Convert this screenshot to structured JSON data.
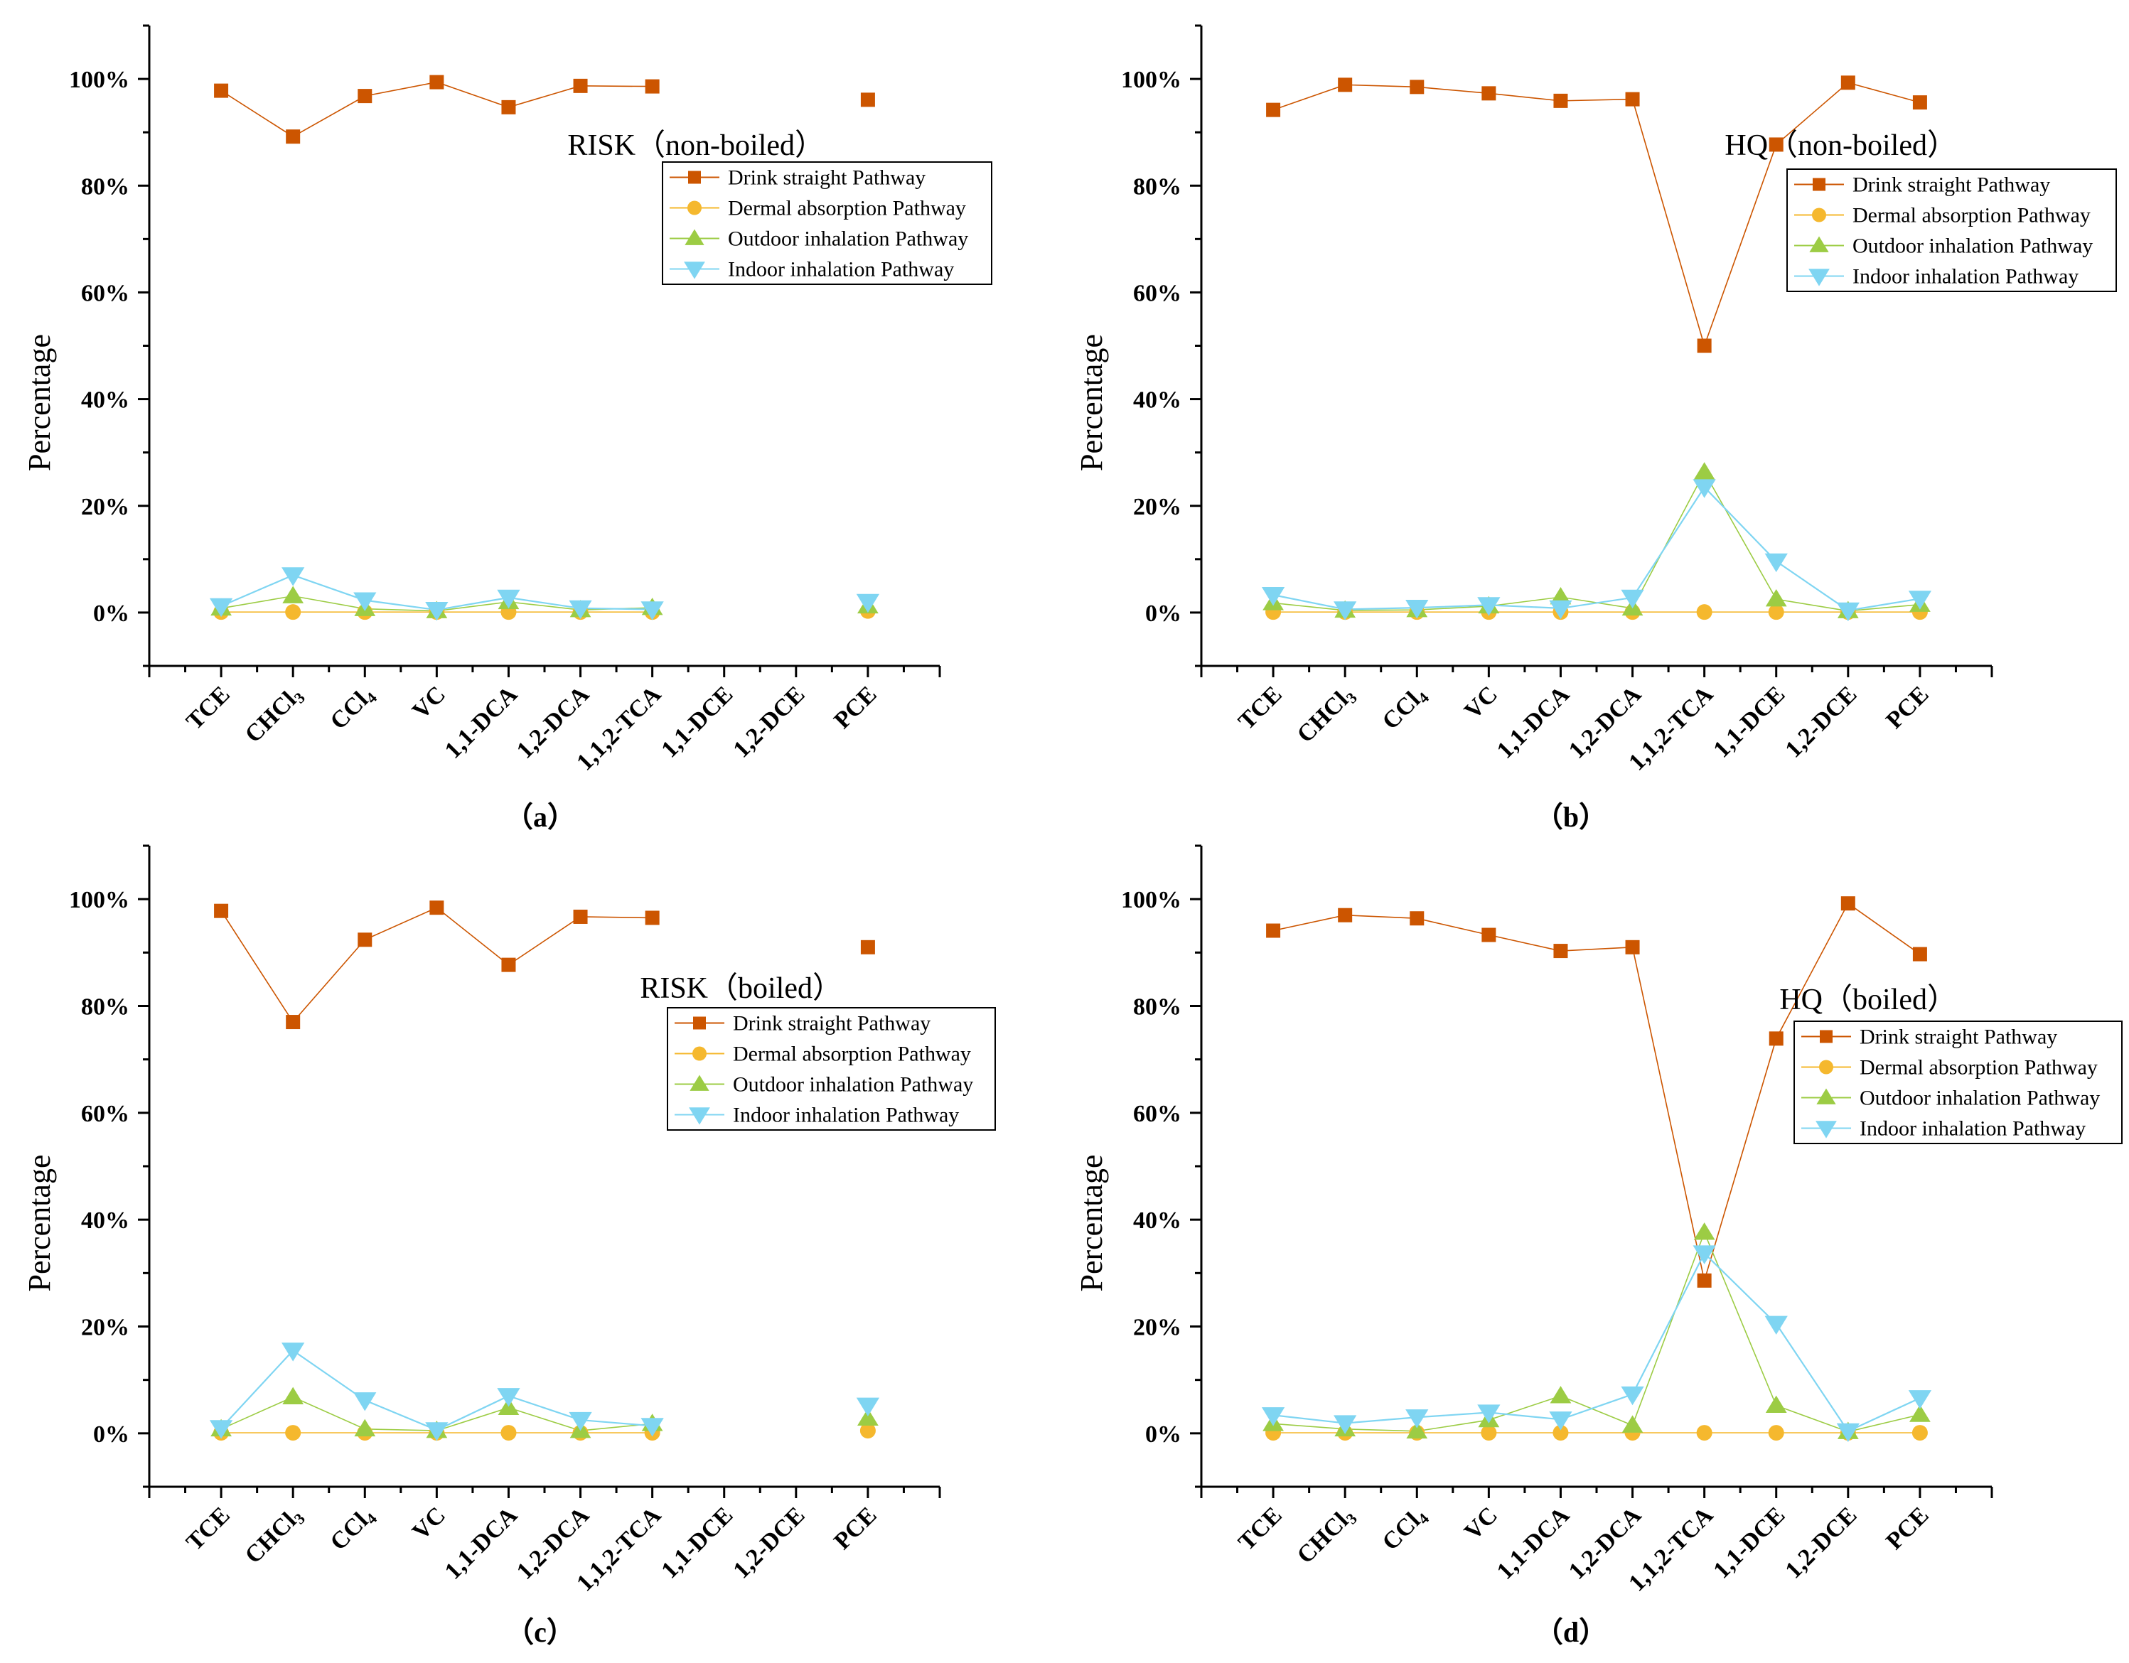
{
  "chart_data": [
    {
      "type": "line",
      "panel_label": "（a）",
      "title": "RISK（non-boiled）",
      "xlabel": "",
      "ylabel": "Percentage",
      "ylim": [
        -10,
        110
      ],
      "yticks": [
        0,
        20,
        40,
        60,
        80,
        100
      ],
      "ytick_labels": [
        "0%",
        "20%",
        "40%",
        "60%",
        "80%",
        "100%"
      ],
      "categories": [
        "TCE",
        "CHCl3",
        "CCl4",
        "VC",
        "1,1-DCA",
        "1,2-DCA",
        "1,1,2-TCA",
        "1,1-DCE",
        "1,2-DCE",
        "PCE"
      ],
      "grid": false,
      "legend_position": "upper-right",
      "series": [
        {
          "name": "Drink straight Pathway",
          "marker": "square",
          "color": "#cc5500",
          "values": [
            97.8,
            89.2,
            96.8,
            99.4,
            94.7,
            98.7,
            98.6,
            null,
            null,
            96.1
          ]
        },
        {
          "name": "Dermal absorption Pathway",
          "marker": "circle",
          "color": "#f5b82e",
          "values": [
            0.1,
            0.1,
            0.1,
            0.1,
            0.1,
            0.1,
            0.1,
            null,
            null,
            0.3
          ]
        },
        {
          "name": "Outdoor inhalation Pathway",
          "marker": "triangle-up",
          "color": "#9ccc44",
          "values": [
            0.8,
            3.1,
            0.7,
            0.3,
            2.0,
            0.5,
            0.9,
            null,
            null,
            1.2
          ]
        },
        {
          "name": "Indoor inhalation Pathway",
          "marker": "triangle-down",
          "color": "#7fd5f2",
          "values": [
            1.2,
            7.0,
            2.3,
            0.5,
            2.8,
            0.8,
            0.6,
            null,
            null,
            2.0
          ]
        }
      ]
    },
    {
      "type": "line",
      "panel_label": "（b）",
      "title": "HQ（non-boiled）",
      "xlabel": "",
      "ylabel": "Percentage",
      "ylim": [
        -10,
        110
      ],
      "yticks": [
        0,
        20,
        40,
        60,
        80,
        100
      ],
      "ytick_labels": [
        "0%",
        "20%",
        "40%",
        "60%",
        "80%",
        "100%"
      ],
      "categories": [
        "TCE",
        "CHCl3",
        "CCl4",
        "VC",
        "1,1-DCA",
        "1,2-DCA",
        "1,1,2-TCA",
        "1,1-DCE",
        "1,2-DCE",
        "PCE"
      ],
      "grid": false,
      "legend_position": "upper-right",
      "series": [
        {
          "name": "Drink straight Pathway",
          "marker": "square",
          "color": "#cc5500",
          "values": [
            94.2,
            98.9,
            98.5,
            97.3,
            95.9,
            96.2,
            50.0,
            87.7,
            99.3,
            95.6
          ]
        },
        {
          "name": "Dermal absorption Pathway",
          "marker": "circle",
          "color": "#f5b82e",
          "values": [
            0.1,
            0.1,
            0.1,
            0.1,
            0.1,
            0.1,
            0.1,
            0.1,
            0.1,
            0.1
          ]
        },
        {
          "name": "Outdoor inhalation Pathway",
          "marker": "triangle-up",
          "color": "#9ccc44",
          "values": [
            1.8,
            0.4,
            0.5,
            1.2,
            2.9,
            0.8,
            26.3,
            2.5,
            0.3,
            1.5
          ]
        },
        {
          "name": "Indoor inhalation Pathway",
          "marker": "triangle-down",
          "color": "#7fd5f2",
          "values": [
            3.3,
            0.6,
            0.9,
            1.4,
            0.8,
            2.8,
            23.5,
            9.6,
            0.4,
            2.6
          ]
        }
      ]
    },
    {
      "type": "line",
      "panel_label": "（c）",
      "title": "RISK（boiled）",
      "xlabel": "",
      "ylabel": "Percentage",
      "ylim": [
        -10,
        110
      ],
      "yticks": [
        0,
        20,
        40,
        60,
        80,
        100
      ],
      "ytick_labels": [
        "0%",
        "20%",
        "40%",
        "60%",
        "80%",
        "100%"
      ],
      "categories": [
        "TCE",
        "CHCl3",
        "CCl4",
        "VC",
        "1,1-DCA",
        "1,2-DCA",
        "1,1,2-TCA",
        "1,1-DCE",
        "1,2-DCE",
        "PCE"
      ],
      "grid": false,
      "legend_position": "upper-right",
      "series": [
        {
          "name": "Drink straight Pathway",
          "marker": "square",
          "color": "#cc5500",
          "values": [
            97.8,
            77.0,
            92.4,
            98.4,
            87.7,
            96.7,
            96.5,
            null,
            null,
            91.0
          ]
        },
        {
          "name": "Dermal absorption Pathway",
          "marker": "circle",
          "color": "#f5b82e",
          "values": [
            0.1,
            0.1,
            0.1,
            0.1,
            0.1,
            0.1,
            0.1,
            null,
            null,
            0.5
          ]
        },
        {
          "name": "Outdoor inhalation Pathway",
          "marker": "triangle-up",
          "color": "#9ccc44",
          "values": [
            0.8,
            6.8,
            0.8,
            0.5,
            4.8,
            0.5,
            1.8,
            null,
            null,
            2.8
          ]
        },
        {
          "name": "Indoor inhalation Pathway",
          "marker": "triangle-down",
          "color": "#7fd5f2",
          "values": [
            1.0,
            15.5,
            6.2,
            0.6,
            7.0,
            2.5,
            1.4,
            null,
            null,
            5.2
          ]
        }
      ]
    },
    {
      "type": "line",
      "panel_label": "（d）",
      "title": "HQ（boiled）",
      "xlabel": "",
      "ylabel": "Percentage",
      "ylim": [
        -10,
        110
      ],
      "yticks": [
        0,
        20,
        40,
        60,
        80,
        100
      ],
      "ytick_labels": [
        "0%",
        "20%",
        "40%",
        "60%",
        "80%",
        "100%"
      ],
      "categories": [
        "TCE",
        "CHCl3",
        "CCl4",
        "VC",
        "1,1-DCA",
        "1,2-DCA",
        "1,1,2-TCA",
        "1,1-DCE",
        "1,2-DCE",
        "PCE"
      ],
      "grid": false,
      "legend_position": "upper-right",
      "series": [
        {
          "name": "Drink straight Pathway",
          "marker": "square",
          "color": "#cc5500",
          "values": [
            94.1,
            97.0,
            96.4,
            93.3,
            90.3,
            91.0,
            28.6,
            73.9,
            99.2,
            89.7
          ]
        },
        {
          "name": "Dermal absorption Pathway",
          "marker": "circle",
          "color": "#f5b82e",
          "values": [
            0.1,
            0.1,
            0.1,
            0.1,
            0.1,
            0.1,
            0.1,
            0.1,
            0.1,
            0.1
          ]
        },
        {
          "name": "Outdoor inhalation Pathway",
          "marker": "triangle-up",
          "color": "#9ccc44",
          "values": [
            1.8,
            0.8,
            0.4,
            2.5,
            7.0,
            1.5,
            37.6,
            5.2,
            0.3,
            3.5
          ]
        },
        {
          "name": "Indoor inhalation Pathway",
          "marker": "triangle-down",
          "color": "#7fd5f2",
          "values": [
            3.4,
            1.9,
            3.0,
            3.9,
            2.6,
            7.3,
            33.7,
            20.5,
            0.4,
            6.6
          ]
        }
      ]
    }
  ]
}
